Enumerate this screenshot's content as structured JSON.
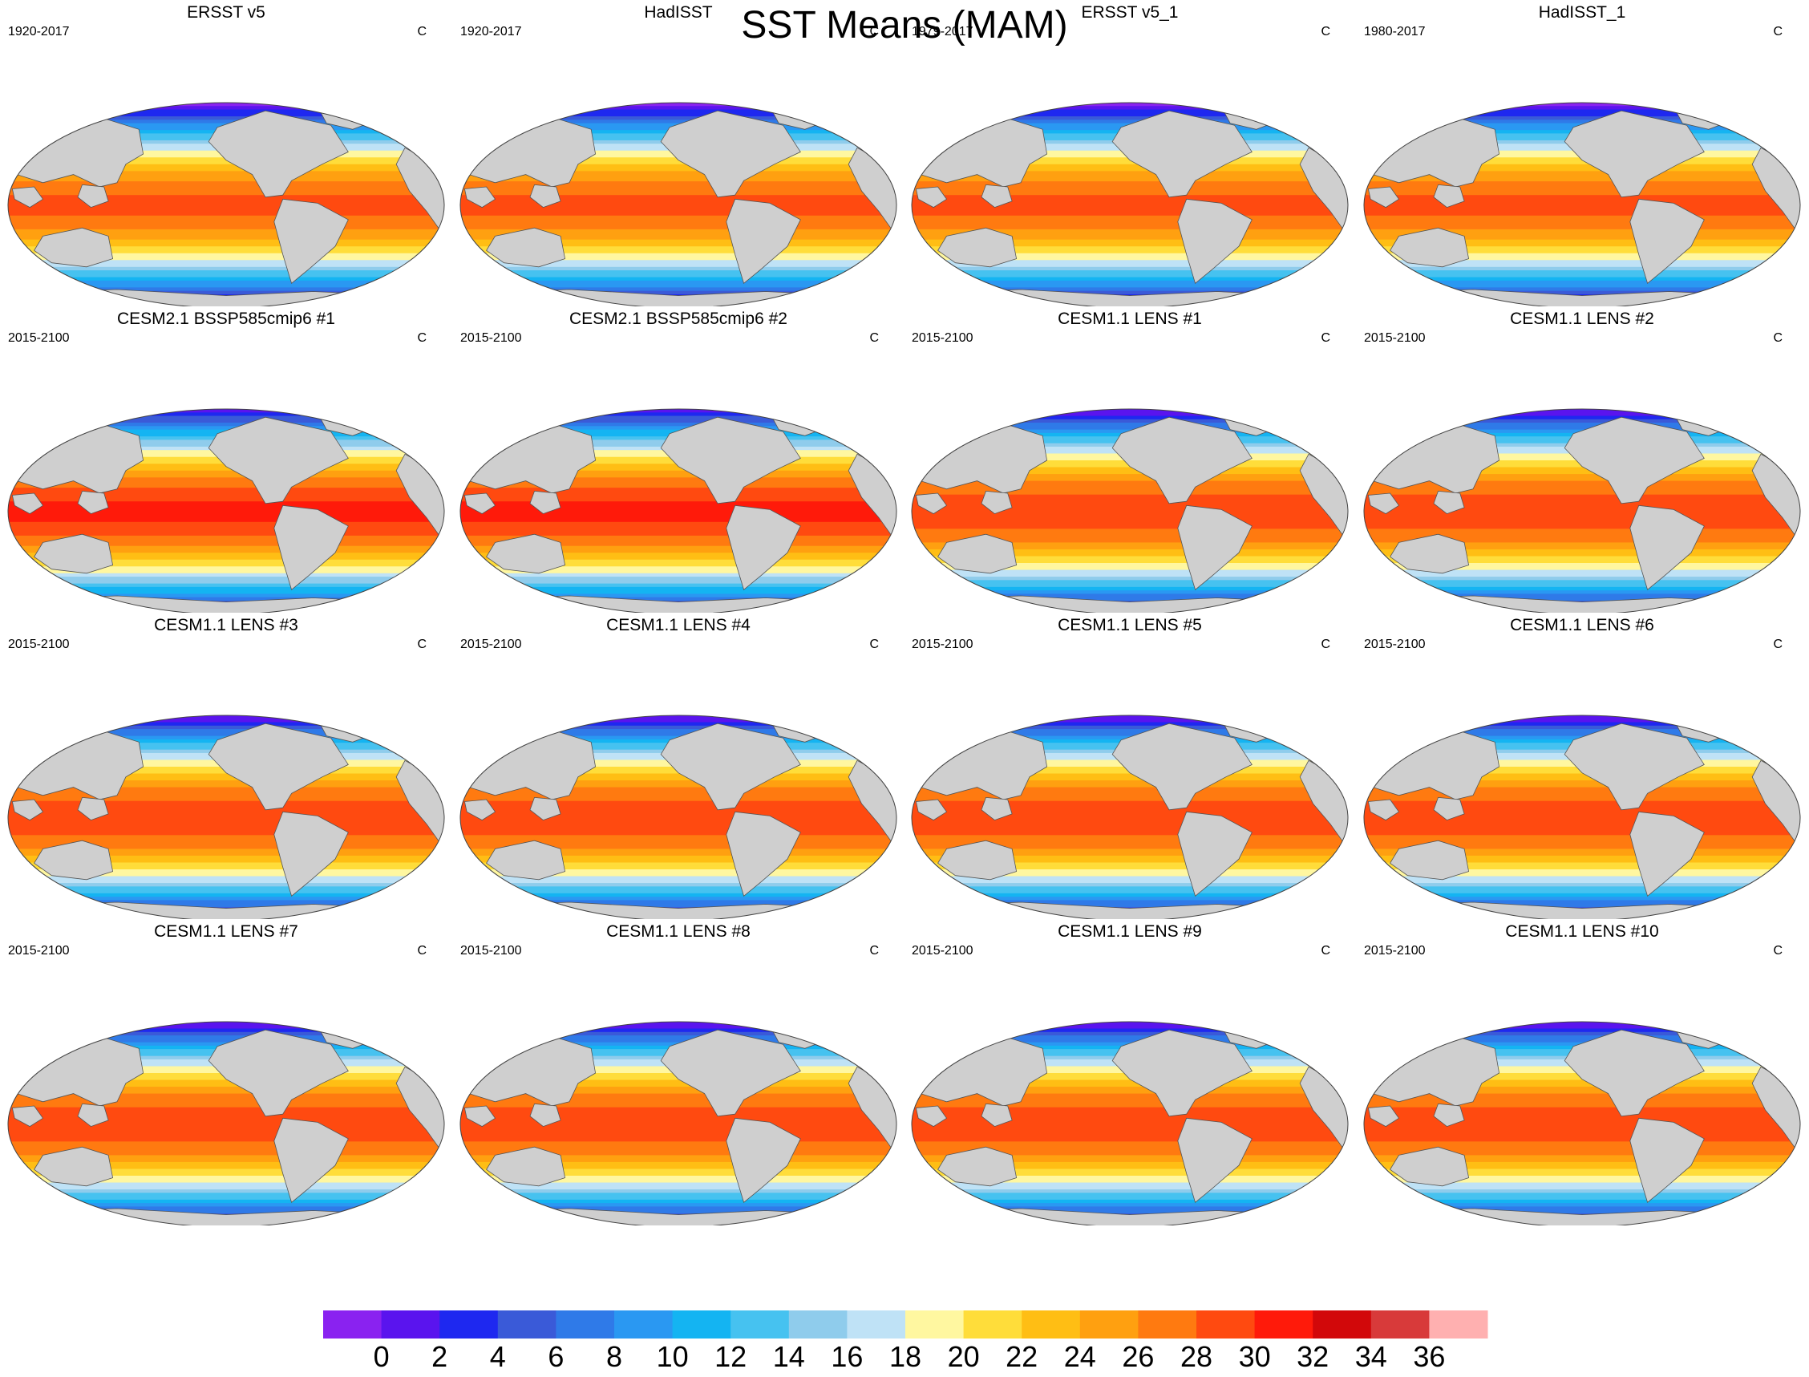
{
  "title": "SST Means (MAM)",
  "units_label": "C",
  "colors": {
    "land": "#cfcfcf",
    "ocean_palette": [
      "#8a22f0",
      "#5a14ee",
      "#1e28f0",
      "#3a5ad8",
      "#2f7ae8",
      "#2a98f2",
      "#14b4f2",
      "#46c2f0",
      "#8fccec",
      "#bfe2f6",
      "#fff7a0",
      "#ffdd3a",
      "#ffbe14",
      "#ffa010",
      "#ff7a10",
      "#ff4a10",
      "#ff1a0a",
      "#d2080a",
      "#d83a3a",
      "#ffb0b0"
    ]
  },
  "panels": [
    {
      "title": "ERSST v5",
      "period": "1920-2017",
      "units": "C",
      "warm": 0.0
    },
    {
      "title": "HadISST",
      "period": "1920-2017",
      "units": "C",
      "warm": 0.0
    },
    {
      "title": "ERSST v5_1",
      "period": "1979-2017",
      "units": "C",
      "warm": 0.0
    },
    {
      "title": "HadISST_1",
      "period": "1980-2017",
      "units": "C",
      "warm": 0.0
    },
    {
      "title": "CESM2.1 BSSP585cmip6 #1",
      "period": "2015-2100",
      "units": "C",
      "warm": 2.0
    },
    {
      "title": "CESM2.1 BSSP585cmip6 #2",
      "period": "2015-2100",
      "units": "C",
      "warm": 2.0
    },
    {
      "title": "CESM1.1 LENS #1",
      "period": "2015-2100",
      "units": "C",
      "warm": 1.2
    },
    {
      "title": "CESM1.1 LENS #2",
      "period": "2015-2100",
      "units": "C",
      "warm": 1.2
    },
    {
      "title": "CESM1.1 LENS #3",
      "period": "2015-2100",
      "units": "C",
      "warm": 1.2
    },
    {
      "title": "CESM1.1 LENS #4",
      "period": "2015-2100",
      "units": "C",
      "warm": 1.2
    },
    {
      "title": "CESM1.1 LENS #5",
      "period": "2015-2100",
      "units": "C",
      "warm": 1.2
    },
    {
      "title": "CESM1.1 LENS #6",
      "period": "2015-2100",
      "units": "C",
      "warm": 1.2
    },
    {
      "title": "CESM1.1 LENS #7",
      "period": "2015-2100",
      "units": "C",
      "warm": 1.2
    },
    {
      "title": "CESM1.1 LENS #8",
      "period": "2015-2100",
      "units": "C",
      "warm": 1.2
    },
    {
      "title": "CESM1.1 LENS #9",
      "period": "2015-2100",
      "units": "C",
      "warm": 1.2
    },
    {
      "title": "CESM1.1 LENS #10",
      "period": "2015-2100",
      "units": "C",
      "warm": 1.2
    }
  ],
  "colorbar": {
    "colors": [
      "#8a22f0",
      "#5a14ee",
      "#1e28f0",
      "#3a5ad8",
      "#2f7ae8",
      "#2a98f2",
      "#14b4f2",
      "#46c2f0",
      "#8fccec",
      "#bfe2f6",
      "#fff7a0",
      "#ffdd3a",
      "#ffbe14",
      "#ffa010",
      "#ff7a10",
      "#ff4a10",
      "#ff1a0a",
      "#d2080a",
      "#d83a3a",
      "#ffb0b0"
    ],
    "labels": [
      "0",
      "2",
      "4",
      "6",
      "8",
      "10",
      "12",
      "14",
      "16",
      "18",
      "20",
      "22",
      "24",
      "26",
      "28",
      "30",
      "32",
      "34",
      "36"
    ]
  }
}
